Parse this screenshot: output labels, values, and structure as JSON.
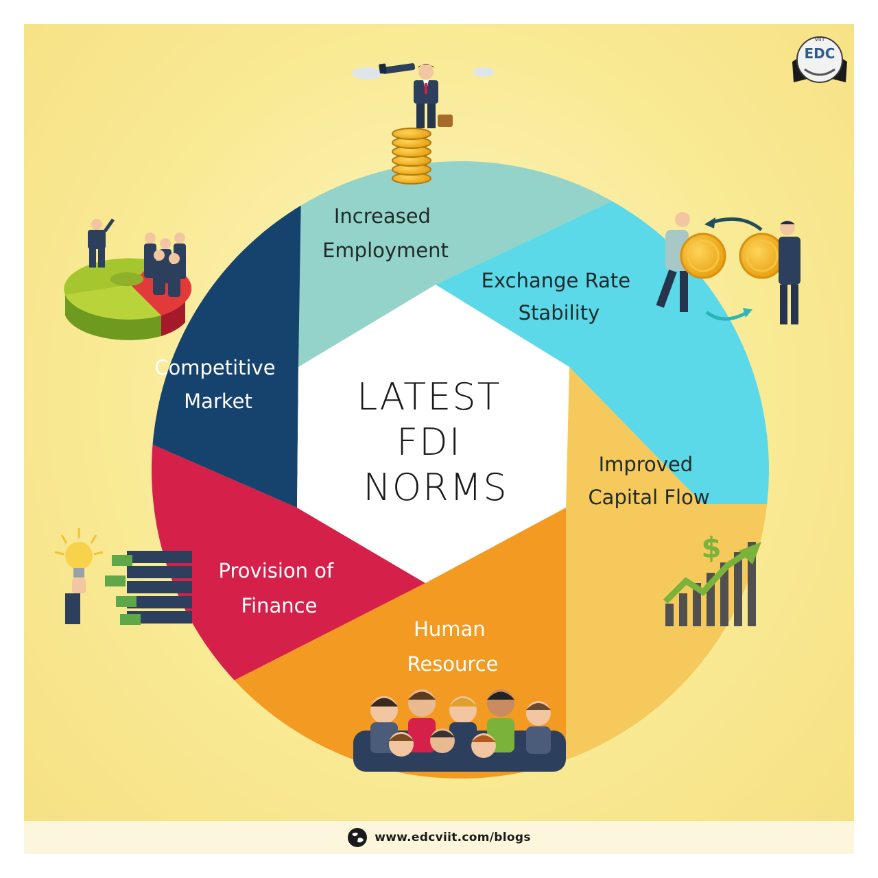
{
  "center": {
    "lines": [
      "LATEST",
      "FDI",
      "NORMS"
    ]
  },
  "segments": [
    {
      "id": "increased-employment",
      "lines": [
        "Increased",
        "Employment"
      ],
      "color": "#94d3c9",
      "text_color": "#1f2a2a"
    },
    {
      "id": "exchange-rate-stability",
      "lines": [
        "Exchange Rate",
        "Stability"
      ],
      "color": "#5bd9e8",
      "text_color": "#1f2a2a"
    },
    {
      "id": "improved-capital-flow",
      "lines": [
        "Improved",
        "Capital Flow"
      ],
      "color": "#f5c95c",
      "text_color": "#1f2a2a"
    },
    {
      "id": "human-resource",
      "lines": [
        "Human",
        "Resource"
      ],
      "color": "#f39a23",
      "text_color": "#ffffff"
    },
    {
      "id": "provision-of-finance",
      "lines": [
        "Provision of",
        "Finance"
      ],
      "color": "#d5204a",
      "text_color": "#ffffff"
    },
    {
      "id": "competitive-market",
      "lines": [
        "Competitive",
        "Market"
      ],
      "color": "#16426e",
      "text_color": "#ffffff"
    }
  ],
  "logo": {
    "text": "EDC",
    "subtext": "VIIT"
  },
  "footer": {
    "url": "www.edcviit.com/blogs"
  },
  "icons": [
    "businessman-telescope-icon",
    "coins-exchange-icon",
    "growth-chart-icon",
    "team-people-icon",
    "finance-handshake-icon",
    "pie-chart-team-icon",
    "globe-icon"
  ]
}
